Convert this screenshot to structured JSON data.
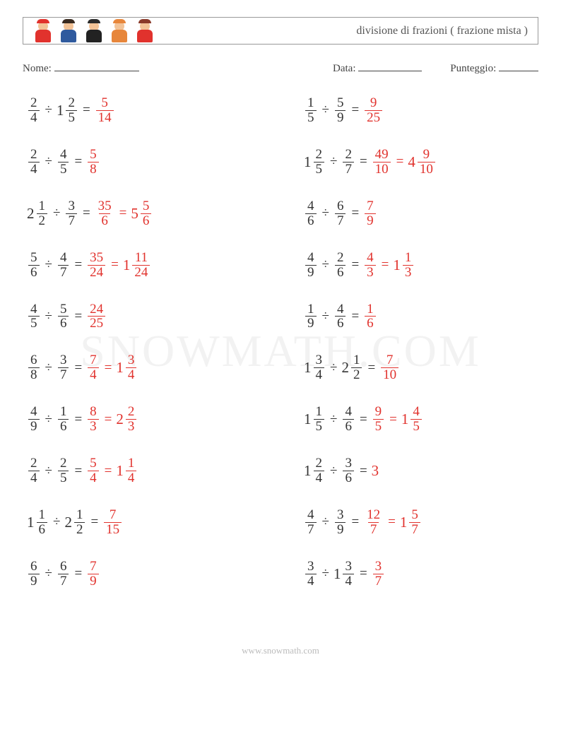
{
  "header": {
    "worksheet_title": "divisione di frazioni ( frazione mista )",
    "avatar_colors": [
      {
        "head": "#f3c397",
        "body": "#e1322d",
        "hair": "#e1322d"
      },
      {
        "head": "#f3c397",
        "body": "#2f5a9e",
        "hair": "#3a2b20"
      },
      {
        "head": "#f3c397",
        "body": "#222222",
        "hair": "#2b2b2b"
      },
      {
        "head": "#f3c397",
        "body": "#e7863b",
        "hair": "#e7863b"
      },
      {
        "head": "#f3c397",
        "body": "#e1322d",
        "hair": "#8a3a2a"
      }
    ]
  },
  "meta": {
    "name_label": "Nome:",
    "date_label": "Data:",
    "score_label": "Punteggio:",
    "name_blank_width": 120,
    "date_blank_width": 90,
    "score_blank_width": 56
  },
  "style": {
    "problem_fontsize": 19,
    "answer_color": "#e1322d",
    "text_color": "#333333",
    "row_gap": 32,
    "col_gap": 60
  },
  "problems": [
    {
      "a": {
        "n": 2,
        "d": 4
      },
      "b": {
        "w": 1,
        "n": 2,
        "d": 5
      },
      "ans": [
        {
          "n": 5,
          "d": 14
        }
      ]
    },
    {
      "a": {
        "n": 1,
        "d": 5
      },
      "b": {
        "n": 5,
        "d": 9
      },
      "ans": [
        {
          "n": 9,
          "d": 25
        }
      ]
    },
    {
      "a": {
        "n": 2,
        "d": 4
      },
      "b": {
        "n": 4,
        "d": 5
      },
      "ans": [
        {
          "n": 5,
          "d": 8
        }
      ]
    },
    {
      "a": {
        "w": 1,
        "n": 2,
        "d": 5
      },
      "b": {
        "n": 2,
        "d": 7
      },
      "ans": [
        {
          "n": 49,
          "d": 10
        },
        {
          "w": 4,
          "n": 9,
          "d": 10
        }
      ]
    },
    {
      "a": {
        "w": 2,
        "n": 1,
        "d": 2
      },
      "b": {
        "n": 3,
        "d": 7
      },
      "ans": [
        {
          "n": 35,
          "d": 6
        },
        {
          "w": 5,
          "n": 5,
          "d": 6
        }
      ]
    },
    {
      "a": {
        "n": 4,
        "d": 6
      },
      "b": {
        "n": 6,
        "d": 7
      },
      "ans": [
        {
          "n": 7,
          "d": 9
        }
      ]
    },
    {
      "a": {
        "n": 5,
        "d": 6
      },
      "b": {
        "n": 4,
        "d": 7
      },
      "ans": [
        {
          "n": 35,
          "d": 24
        },
        {
          "w": 1,
          "n": 11,
          "d": 24
        }
      ]
    },
    {
      "a": {
        "n": 4,
        "d": 9
      },
      "b": {
        "n": 2,
        "d": 6
      },
      "ans": [
        {
          "n": 4,
          "d": 3
        },
        {
          "w": 1,
          "n": 1,
          "d": 3
        }
      ]
    },
    {
      "a": {
        "n": 4,
        "d": 5
      },
      "b": {
        "n": 5,
        "d": 6
      },
      "ans": [
        {
          "n": 24,
          "d": 25
        }
      ]
    },
    {
      "a": {
        "n": 1,
        "d": 9
      },
      "b": {
        "n": 4,
        "d": 6
      },
      "ans": [
        {
          "n": 1,
          "d": 6
        }
      ]
    },
    {
      "a": {
        "n": 6,
        "d": 8
      },
      "b": {
        "n": 3,
        "d": 7
      },
      "ans": [
        {
          "n": 7,
          "d": 4
        },
        {
          "w": 1,
          "n": 3,
          "d": 4
        }
      ]
    },
    {
      "a": {
        "w": 1,
        "n": 3,
        "d": 4
      },
      "b": {
        "w": 2,
        "n": 1,
        "d": 2
      },
      "ans": [
        {
          "n": 7,
          "d": 10
        }
      ]
    },
    {
      "a": {
        "n": 4,
        "d": 9
      },
      "b": {
        "n": 1,
        "d": 6
      },
      "ans": [
        {
          "n": 8,
          "d": 3
        },
        {
          "w": 2,
          "n": 2,
          "d": 3
        }
      ]
    },
    {
      "a": {
        "w": 1,
        "n": 1,
        "d": 5
      },
      "b": {
        "n": 4,
        "d": 6
      },
      "ans": [
        {
          "n": 9,
          "d": 5
        },
        {
          "w": 1,
          "n": 4,
          "d": 5
        }
      ]
    },
    {
      "a": {
        "n": 2,
        "d": 4
      },
      "b": {
        "n": 2,
        "d": 5
      },
      "ans": [
        {
          "n": 5,
          "d": 4
        },
        {
          "w": 1,
          "n": 1,
          "d": 4
        }
      ]
    },
    {
      "a": {
        "w": 1,
        "n": 2,
        "d": 4
      },
      "b": {
        "n": 3,
        "d": 6
      },
      "ans": [
        {
          "int": 3
        }
      ]
    },
    {
      "a": {
        "w": 1,
        "n": 1,
        "d": 6
      },
      "b": {
        "w": 2,
        "n": 1,
        "d": 2
      },
      "ans": [
        {
          "n": 7,
          "d": 15
        }
      ]
    },
    {
      "a": {
        "n": 4,
        "d": 7
      },
      "b": {
        "n": 3,
        "d": 9
      },
      "ans": [
        {
          "n": 12,
          "d": 7
        },
        {
          "w": 1,
          "n": 5,
          "d": 7
        }
      ]
    },
    {
      "a": {
        "n": 6,
        "d": 9
      },
      "b": {
        "n": 6,
        "d": 7
      },
      "ans": [
        {
          "n": 7,
          "d": 9
        }
      ]
    },
    {
      "a": {
        "n": 3,
        "d": 4
      },
      "b": {
        "w": 1,
        "n": 3,
        "d": 4
      },
      "ans": [
        {
          "n": 3,
          "d": 7
        }
      ]
    }
  ],
  "watermark": "SNOWMATH.COM",
  "footer": "www.snowmath.com"
}
